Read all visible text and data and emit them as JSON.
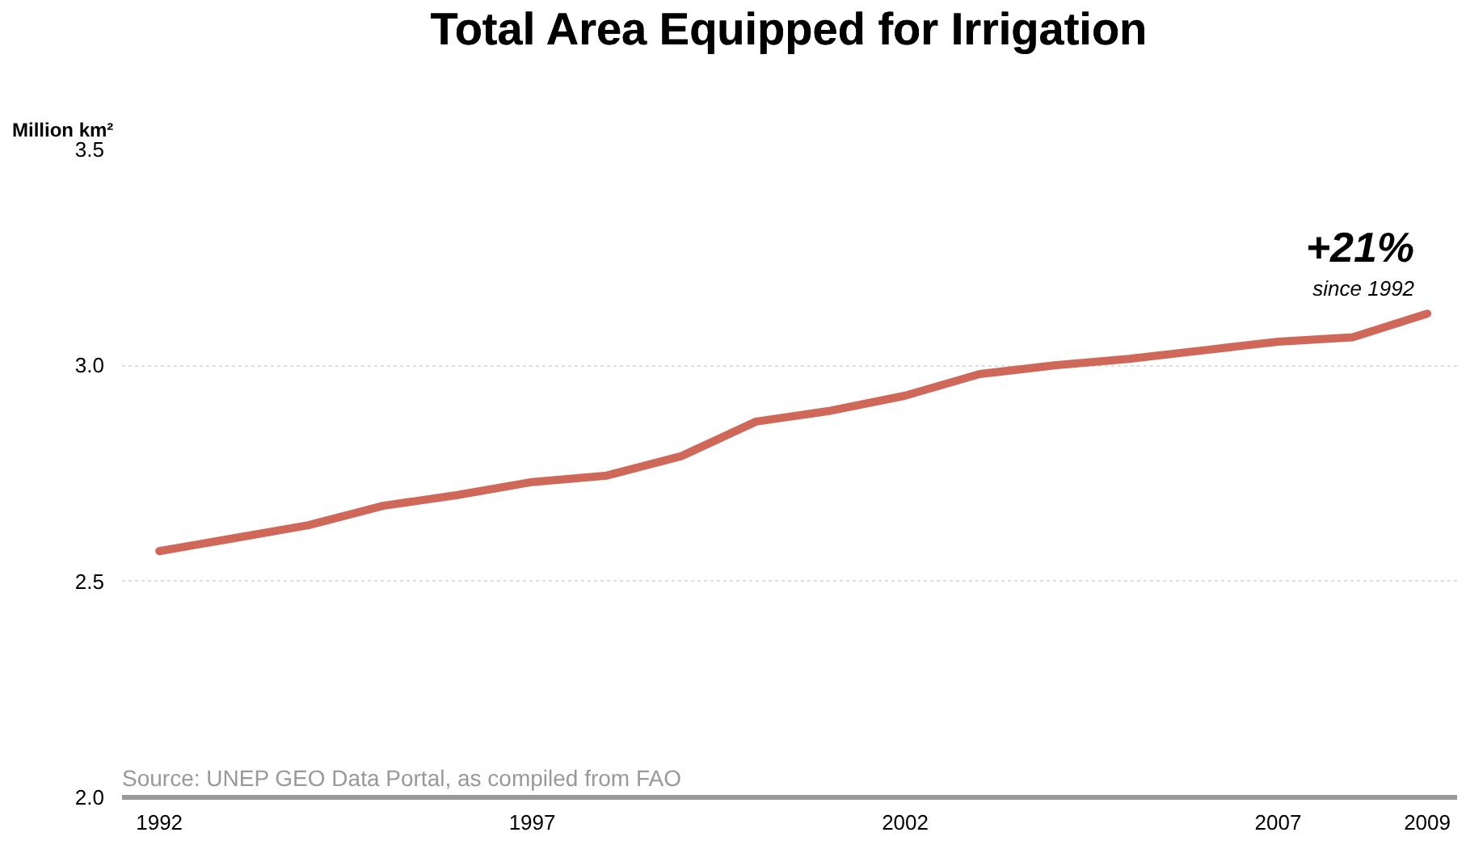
{
  "chart_data": {
    "type": "line",
    "title": "Total Area Equipped for Irrigation",
    "ylabel": "Million km²",
    "x": [
      1992,
      1993,
      1994,
      1995,
      1996,
      1997,
      1998,
      1999,
      2000,
      2001,
      2002,
      2003,
      2004,
      2005,
      2006,
      2007,
      2008,
      2009
    ],
    "series": [
      {
        "color": "#d0685a",
        "values": [
          2.57,
          2.6,
          2.63,
          2.675,
          2.7,
          2.73,
          2.745,
          2.79,
          2.87,
          2.895,
          2.93,
          2.98,
          3.0,
          3.015,
          3.035,
          3.055,
          3.065,
          3.12
        ]
      }
    ],
    "xlim": [
      1991.5,
      2009.4
    ],
    "ylim": [
      2.0,
      3.5
    ],
    "xticks": [
      1992,
      1997,
      2002,
      2007,
      2009
    ],
    "yticks": [
      {
        "value": 2.0,
        "label": "2.0"
      },
      {
        "value": 2.5,
        "label": "2.5"
      },
      {
        "value": 3.0,
        "label": "3.0"
      },
      {
        "value": 3.5,
        "label": "3.5"
      }
    ],
    "grid": "y",
    "marker": "none",
    "line_style": "solid",
    "annotations": [
      "+21%",
      "since 1992",
      "Source: UNEP GEO Data Portal, as compiled from FAO"
    ]
  }
}
